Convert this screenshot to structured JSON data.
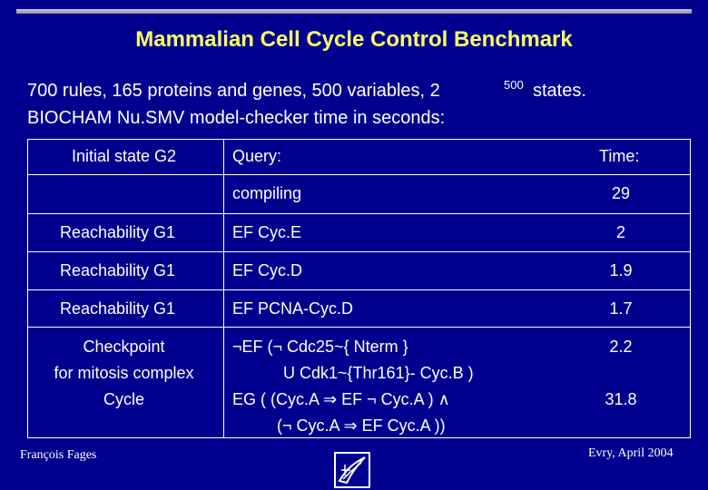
{
  "slide": {
    "title": "Mammalian Cell Cycle Control Benchmark",
    "intro_line1": "700 rules, 165 proteins and genes, 500 variables, 2",
    "intro_sup": "500",
    "intro_tail": "states.",
    "intro_line2": "BIOCHAM  Nu.SMV model-checker time in seconds:"
  },
  "table": {
    "headers": [
      "Initial state G2",
      "Query:",
      "Time:"
    ],
    "rows": [
      {
        "state": "",
        "query": [
          "compiling"
        ],
        "time": "29"
      },
      {
        "state": "Reachability   G1",
        "query": [
          "EF Cyc.E"
        ],
        "time": "2"
      },
      {
        "state": "Reachability   G1",
        "query": [
          "EF Cyc.D"
        ],
        "time": "1.9"
      },
      {
        "state": "Reachability   G1",
        "query": [
          "EF PCNA-Cyc.D"
        ],
        "time": "1.7"
      }
    ],
    "checkpoint": {
      "state_lines": [
        "Checkpoint",
        "for mitosis complex",
        "Cycle"
      ],
      "query1_lines": [
        "¬EF (¬ Cdc25~{ Nterm }",
        "U Cdk1~{Thr161}- Cyc.B )"
      ],
      "time1": "2.2",
      "query2_lines": [
        "EG ( (Cyc.A  ⇒ EF ¬ Cyc.A ) ∧",
        "(¬ Cyc.A  ⇒ EF Cyc.A ))"
      ],
      "time2": "31.8"
    }
  },
  "footer": {
    "author": "François Fages",
    "place_date": "Evry,  April 2004"
  },
  "colors": {
    "background": "#00008f",
    "title": "#ffff66",
    "text": "#ffffff"
  }
}
